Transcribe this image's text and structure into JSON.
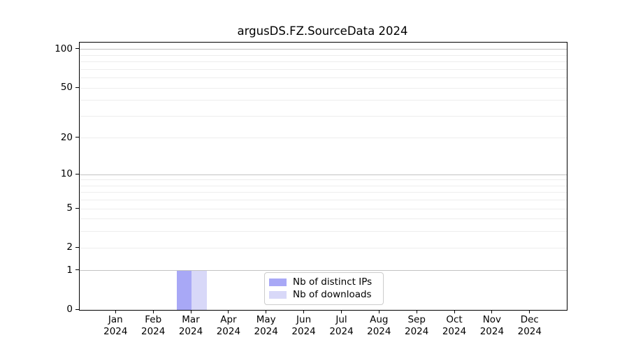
{
  "chart_data": {
    "type": "bar",
    "title": "argusDS.FZ.SourceData 2024",
    "categories": [
      "Jan",
      "Feb",
      "Mar",
      "Apr",
      "May",
      "Jun",
      "Jul",
      "Aug",
      "Sep",
      "Oct",
      "Nov",
      "Dec"
    ],
    "year_label": "2024",
    "series": [
      {
        "name": "Nb of distinct IPs",
        "color": "#a8a8f6",
        "values": [
          0,
          0,
          1,
          0,
          0,
          0,
          0,
          0,
          0,
          0,
          0,
          0
        ]
      },
      {
        "name": "Nb of downloads",
        "color": "#d8d8f8",
        "values": [
          0,
          0,
          1,
          0,
          0,
          0,
          0,
          0,
          0,
          0,
          0,
          0
        ]
      }
    ],
    "xlabel": "",
    "ylabel": "",
    "yscale": "log1p",
    "yticks": [
      0,
      1,
      2,
      5,
      10,
      20,
      50,
      100
    ],
    "ylim": [
      0,
      113
    ],
    "major_gridlines": [
      1,
      10,
      100
    ],
    "minor_gridlines": [
      2,
      3,
      4,
      5,
      6,
      7,
      8,
      9,
      20,
      30,
      40,
      50,
      60,
      70,
      80,
      90
    ],
    "grid": true,
    "legend_position": "lower center"
  },
  "colors": {
    "background": "#ffffff",
    "spine": "#000000",
    "major_grid": "#c2c2c2",
    "minor_grid": "#ededed",
    "legend_border": "#cccccc",
    "text": "#000000"
  }
}
